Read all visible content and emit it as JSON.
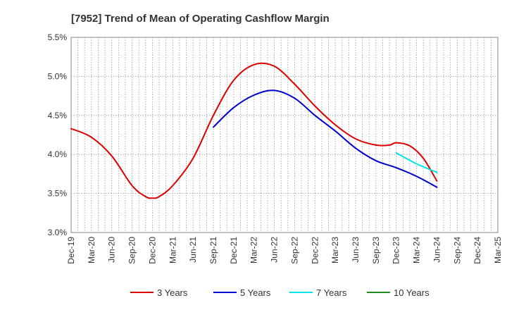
{
  "chart_data": {
    "type": "line",
    "title": "[7952]  Trend of Mean of Operating Cashflow Margin",
    "xlabel": "",
    "ylabel": "",
    "ylim": [
      3.0,
      5.5
    ],
    "y_ticks": [
      "3.0%",
      "3.5%",
      "4.0%",
      "4.5%",
      "5.0%",
      "5.5%"
    ],
    "y_tick_values": [
      3.0,
      3.5,
      4.0,
      4.5,
      5.0,
      5.5
    ],
    "categories": [
      "Dec-19",
      "Mar-20",
      "Jun-20",
      "Sep-20",
      "Dec-20",
      "Mar-21",
      "Jun-21",
      "Sep-21",
      "Dec-21",
      "Mar-22",
      "Jun-22",
      "Sep-22",
      "Dec-22",
      "Mar-23",
      "Jun-23",
      "Sep-23",
      "Dec-23",
      "Mar-24",
      "Jun-24",
      "Sep-24",
      "Dec-24",
      "Mar-25"
    ],
    "x_months": 63,
    "grid": true,
    "legend_position": "bottom",
    "series": [
      {
        "name": "3 Years",
        "color": "#dd0000",
        "points": [
          [
            0,
            4.33
          ],
          [
            3,
            4.22
          ],
          [
            6,
            3.98
          ],
          [
            9,
            3.6
          ],
          [
            11,
            3.46
          ],
          [
            12,
            3.44
          ],
          [
            13,
            3.46
          ],
          [
            15,
            3.6
          ],
          [
            18,
            3.95
          ],
          [
            21,
            4.5
          ],
          [
            24,
            4.95
          ],
          [
            27,
            5.15
          ],
          [
            30,
            5.13
          ],
          [
            33,
            4.9
          ],
          [
            36,
            4.62
          ],
          [
            39,
            4.38
          ],
          [
            42,
            4.2
          ],
          [
            45,
            4.12
          ],
          [
            47,
            4.12
          ],
          [
            48,
            4.15
          ],
          [
            50,
            4.11
          ],
          [
            52,
            3.95
          ],
          [
            54,
            3.66
          ]
        ]
      },
      {
        "name": "5 Years",
        "color": "#0000cc",
        "points": [
          [
            21,
            4.35
          ],
          [
            24,
            4.6
          ],
          [
            27,
            4.76
          ],
          [
            30,
            4.82
          ],
          [
            33,
            4.72
          ],
          [
            36,
            4.5
          ],
          [
            39,
            4.3
          ],
          [
            42,
            4.08
          ],
          [
            45,
            3.92
          ],
          [
            48,
            3.83
          ],
          [
            51,
            3.72
          ],
          [
            54,
            3.58
          ]
        ]
      },
      {
        "name": "7 Years",
        "color": "#00e5e5",
        "points": [
          [
            48,
            4.02
          ],
          [
            51,
            3.88
          ],
          [
            54,
            3.77
          ]
        ]
      },
      {
        "name": "10 Years",
        "color": "#228b22",
        "points": []
      }
    ]
  }
}
